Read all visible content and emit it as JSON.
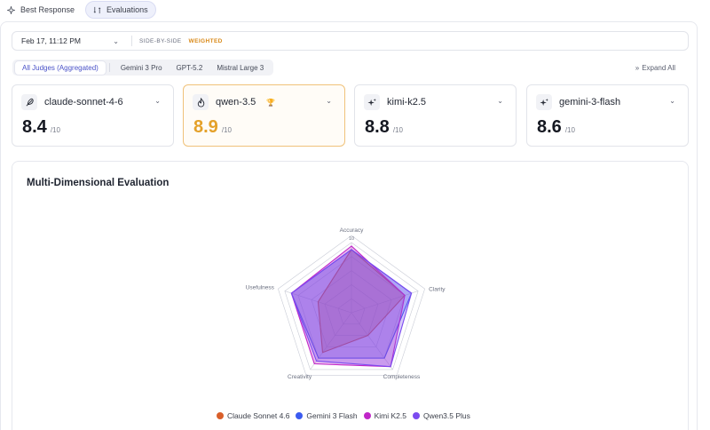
{
  "top_tabs": [
    {
      "label": "Best Response",
      "icon": "sparkles-icon",
      "active": false
    },
    {
      "label": "Evaluations",
      "icon": "compare-icon",
      "active": true
    }
  ],
  "filter": {
    "date": "Feb 17, 11:12 PM",
    "modes": [
      "SIDE-BY-SIDE",
      "WEIGHTED"
    ],
    "active_mode": "WEIGHTED"
  },
  "judge_tabs": [
    "All Judges (Aggregated)",
    "Gemini 3 Pro",
    "GPT-5.2",
    "Mistral Large 3"
  ],
  "expand_all": "Expand All",
  "cards": [
    {
      "name": "claude-sonnet-4-6",
      "score": "8.4",
      "max": "/10",
      "icon": "feather-icon",
      "winner": false
    },
    {
      "name": "qwen-3.5",
      "score": "8.9",
      "max": "/10",
      "icon": "flame-icon",
      "winner": true
    },
    {
      "name": "kimi-k2.5",
      "score": "8.8",
      "max": "/10",
      "icon": "sparkles-icon",
      "winner": false
    },
    {
      "name": "gemini-3-flash",
      "score": "8.6",
      "max": "/10",
      "icon": "sparkles-icon",
      "winner": false
    }
  ],
  "colors": {
    "accent": "#4a52c8",
    "gold": "#e4a12a",
    "claude": "#d95f2a",
    "gemini": "#3b5bf0",
    "kimi": "#c026c8",
    "qwen": "#7b4bf0"
  },
  "chart_title": "Multi-Dimensional Evaluation",
  "chart_data": {
    "type": "radar",
    "title": "Multi-Dimensional Evaluation",
    "axes": [
      "Accuracy",
      "Clarity",
      "Completeness",
      "Creativity",
      "Usefulness"
    ],
    "range": [
      0,
      10
    ],
    "tick_labels": [
      "10"
    ],
    "series": [
      {
        "name": "Claude Sonnet 4.6",
        "color": "#d95f2a",
        "values": [
          9,
          8,
          4,
          7,
          5
        ]
      },
      {
        "name": "Gemini 3 Flash",
        "color": "#3b5bf0",
        "values": [
          9,
          9,
          8,
          8,
          9
        ]
      },
      {
        "name": "Kimi K2.5",
        "color": "#c026c8",
        "values": [
          9.5,
          8,
          9.5,
          9,
          9
        ]
      },
      {
        "name": "Qwen3.5 Plus",
        "color": "#7b4bf0",
        "values": [
          9,
          9,
          9.5,
          8.5,
          9
        ]
      }
    ]
  }
}
